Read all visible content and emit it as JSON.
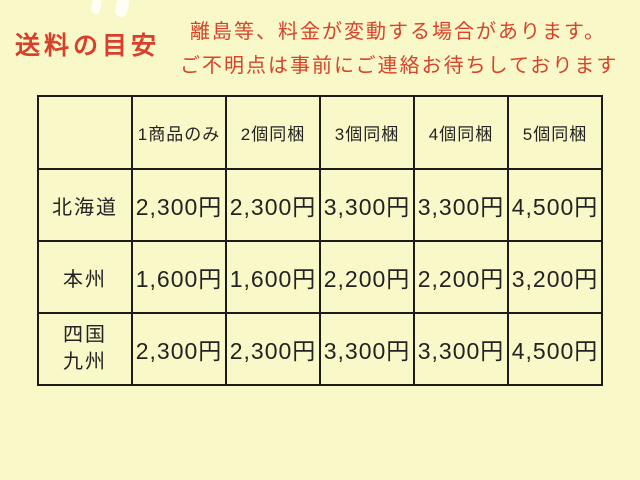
{
  "page": {
    "title": "送料の目安",
    "notice": {
      "line1": "離島等、料金が変動する場合があります。",
      "line2": "ご不明点は事前にご連絡お待ちしております"
    }
  },
  "table": {
    "headers": [
      "",
      "1商品のみ",
      "2個同梱",
      "3個同梱",
      "4個同梱",
      "5個同梱"
    ],
    "rows": [
      {
        "region": "北海道",
        "values": [
          "2,300円",
          "2,300円",
          "3,300円",
          "3,300円",
          "4,500円"
        ]
      },
      {
        "region": "本州",
        "values": [
          "1,600円",
          "1,600円",
          "2,200円",
          "2,200円",
          "3,200円"
        ]
      },
      {
        "region_line1": "四国",
        "region_line2": "九州",
        "values": [
          "2,300円",
          "2,300円",
          "3,300円",
          "3,300円",
          "4,500円"
        ]
      }
    ]
  },
  "colors": {
    "background": "#f8f8c8",
    "accent_red": "#d7402a",
    "table_border": "#1c1c1c",
    "table_text": "#232323"
  }
}
